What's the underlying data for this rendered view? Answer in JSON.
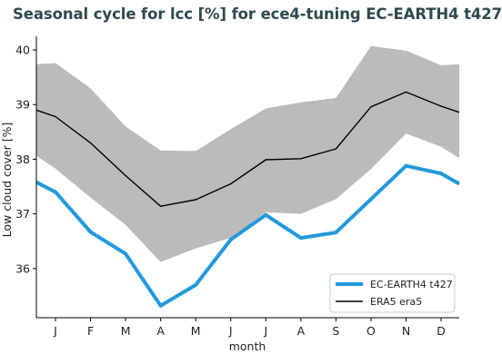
{
  "chart_data": {
    "type": "line",
    "title": "Seasonal cycle for lcc [%] for ece4-tuning EC-EARTH4 t427",
    "xlabel": "month",
    "ylabel": "Low cloud cover [%]",
    "categories": [
      "J",
      "F",
      "M",
      "A",
      "M",
      "J",
      "J",
      "A",
      "S",
      "O",
      "N",
      "D"
    ],
    "ylim": [
      35.1,
      40.25
    ],
    "yticks": [
      36,
      37,
      38,
      39,
      40
    ],
    "grid": false,
    "legend_position": "bottom-right",
    "series": [
      {
        "name": "EC-EARTH4 t427",
        "color": "#2299dd",
        "values": [
          37.4,
          36.67,
          36.27,
          35.32,
          35.7,
          36.53,
          36.98,
          36.56,
          36.66,
          37.27,
          37.88,
          37.74
        ],
        "edge_values": {
          "start": 37.58,
          "end": 37.55
        }
      },
      {
        "name": "ERA5 era5",
        "color": "#000000",
        "values": [
          38.78,
          38.3,
          37.7,
          37.14,
          37.26,
          37.55,
          37.99,
          38.01,
          38.19,
          38.96,
          39.23,
          38.97
        ],
        "edge_values": {
          "start": 38.9,
          "end": 38.86
        },
        "band": {
          "color": "#bbbbbb",
          "upper": [
            39.76,
            39.3,
            38.6,
            38.16,
            38.15,
            38.55,
            38.93,
            39.04,
            39.12,
            40.07,
            39.99,
            39.72
          ],
          "lower": [
            37.83,
            37.3,
            36.8,
            36.12,
            36.37,
            36.56,
            37.03,
            37.0,
            37.27,
            37.82,
            38.47,
            38.23
          ],
          "upper_edge": {
            "start": 39.74,
            "end": 39.74
          },
          "lower_edge": {
            "start": 38.06,
            "end": 38.02
          }
        }
      }
    ]
  }
}
